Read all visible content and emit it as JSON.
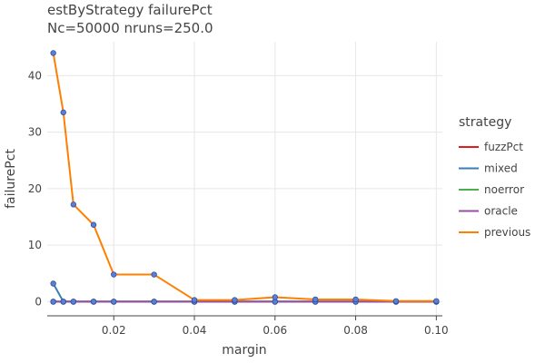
{
  "chart_data": {
    "type": "line",
    "title": "estByStrategy failurePct",
    "subtitle": "Nc=50000 nruns=250.0",
    "xlabel": "margin",
    "ylabel": "failurePct",
    "xlim": [
      0.0035,
      0.1015
    ],
    "ylim": [
      -2.5,
      46
    ],
    "x_ticks": [
      0.02,
      0.04,
      0.06,
      0.08,
      0.1
    ],
    "x_tick_labels": [
      "0.02",
      "0.04",
      "0.06",
      "0.08",
      "0.10"
    ],
    "y_ticks": [
      0,
      10,
      20,
      30,
      40
    ],
    "y_tick_labels": [
      "0",
      "10",
      "20",
      "30",
      "40"
    ],
    "grid": true,
    "legend": {
      "title": "strategy",
      "position": "right"
    },
    "x": [
      0.005,
      0.0075,
      0.01,
      0.015,
      0.02,
      0.03,
      0.04,
      0.05,
      0.06,
      0.07,
      0.08,
      0.09,
      0.1
    ],
    "series": [
      {
        "name": "fuzzPct",
        "color": "#e41a1c",
        "values": [
          0,
          0,
          0,
          0,
          0,
          0,
          0,
          0,
          0,
          0,
          0,
          0,
          0
        ]
      },
      {
        "name": "mixed",
        "color": "#377eb8",
        "values": [
          3.2,
          0,
          0,
          0,
          0,
          0,
          0,
          0,
          0,
          0,
          0,
          0,
          0
        ]
      },
      {
        "name": "noerror",
        "color": "#4daf4a",
        "values": [
          0,
          0,
          0,
          0,
          0,
          0,
          0,
          0,
          0,
          0,
          0,
          0,
          0
        ]
      },
      {
        "name": "oracle",
        "color": "#984ea3",
        "values": [
          0,
          0,
          0,
          0,
          0,
          0,
          0,
          0,
          0,
          0,
          0,
          0,
          0
        ]
      },
      {
        "name": "previous",
        "color": "#ff7f00",
        "values": [
          44,
          33.5,
          17.2,
          13.6,
          4.8,
          4.8,
          0.3,
          0.3,
          0.8,
          0.4,
          0.4,
          0.1,
          0.1
        ]
      }
    ],
    "marker_color": "#5b7fd6"
  }
}
